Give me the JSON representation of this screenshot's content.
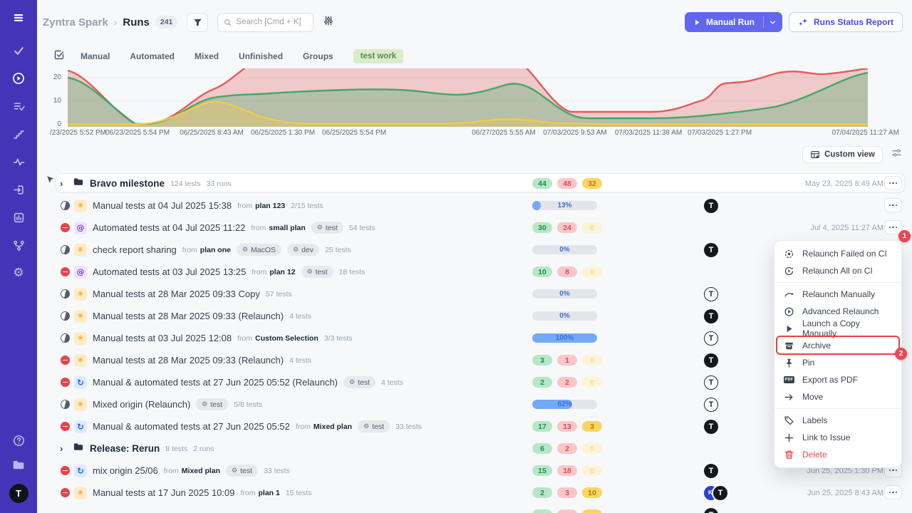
{
  "sidebar": {
    "icons": [
      "menu",
      "tests",
      "runs",
      "test-plans",
      "milestones",
      "analytics",
      "imports",
      "reports",
      "branches",
      "settings",
      "help",
      "projects"
    ],
    "avatar": "T",
    "accent_color": "#4435b8"
  },
  "header": {
    "breadcrumb": {
      "project": "Zyntra Spark",
      "separator": "›",
      "page": "Runs",
      "count": "241"
    },
    "search": {
      "placeholder": "Search [Cmd + K]"
    },
    "actions": {
      "manual_run": "Manual Run",
      "runs_status_report": "Runs Status Report"
    }
  },
  "filters": {
    "tabs": [
      "Manual",
      "Automated",
      "Mixed",
      "Unfinished",
      "Groups"
    ],
    "tag": "test work"
  },
  "chart_data": {
    "type": "area",
    "x": [
      "06/23/2025 5:52 PM",
      "06/23/2025 5:54 PM",
      "06/25/2025 8:43 AM",
      "06/25/2025 1:30 PM",
      "06/25/2025 5:54 PM",
      "06/27/2025 5:55 AM",
      "07/03/2025 9:53 AM",
      "07/03/2025 11:38 AM",
      "07/03/2025 1:27 PM",
      "07/04/2025 11:27 AM"
    ],
    "x_axis_display": [
      "/23/2025 5:52 PM",
      "06/23/2025 5:54 PM",
      "06/25/2025 8:43 AM",
      "06/25/2025 1:30 PM",
      "06/25/2025 5:54 PM",
      "06/27/2025 5:55 AM",
      "07/03/2025 9:53 AM",
      "07/03/2025 11:38 AM",
      "07/03/2025 1:27 PM",
      "07/04/2025 11:27 AM"
    ],
    "series": [
      {
        "name": "failed",
        "color": "#e25c5c",
        "values": [
          22,
          0,
          16,
          28,
          28,
          26,
          5,
          5,
          18,
          23
        ]
      },
      {
        "name": "passed",
        "color": "#41a968",
        "values": [
          20,
          0,
          12,
          13,
          15,
          17,
          3,
          3,
          4,
          22
        ]
      },
      {
        "name": "skipped",
        "color": "#f2c94c",
        "values": [
          0,
          0,
          10,
          1,
          0,
          2,
          0,
          0,
          0,
          1
        ]
      }
    ],
    "y_ticks": [
      0,
      10,
      20
    ],
    "y_tick_labels": [
      "20",
      "10",
      "0"
    ],
    "ylim": [
      0,
      25
    ],
    "grid": true,
    "legend": false
  },
  "toolbar": {
    "custom_view": "Custom view"
  },
  "table": {
    "labels": {
      "from": "from"
    },
    "avatar_labels": {
      "filled-t": "T",
      "outline-t": "T",
      "ki": "KI"
    },
    "rows": [
      {
        "kind": "group",
        "card": true,
        "cursor": true,
        "title": "Bravo milestone",
        "tests": "124 tests",
        "runs": "33 runs",
        "metric": {
          "type": "badges",
          "values": [
            "44",
            "48",
            "32"
          ]
        },
        "date": "May 23, 2025 8:49 AM",
        "more": true
      },
      {
        "kind": "run",
        "status": "in-progress",
        "origin": "manual",
        "title": "Manual tests at 04 Jul 2025 15:38",
        "plan": "plan 123",
        "tests": "2/15 tests",
        "metric": {
          "type": "progress",
          "percent": 13,
          "label": "13%"
        },
        "avatars": [
          "filled-t"
        ],
        "more": true
      },
      {
        "kind": "run",
        "status": "failed",
        "origin": "automated",
        "title": "Automated tests at 04 Jul 2025 11:22",
        "plan": "small plan",
        "tags": [
          "test"
        ],
        "tests": "54 tests",
        "metric": {
          "type": "badges",
          "values": [
            "30",
            "24",
            "0"
          ]
        },
        "date": "Jul 4, 2025 11:27 AM",
        "more": true
      },
      {
        "kind": "run",
        "status": "in-progress",
        "origin": "manual",
        "title": "check report sharing",
        "plan": "plan one",
        "tags": [
          "MacOS",
          "dev"
        ],
        "tests": "25 tests",
        "metric": {
          "type": "progress",
          "percent": 0,
          "label": "0%"
        },
        "avatars": [
          "filled-t"
        ],
        "more": false
      },
      {
        "kind": "run",
        "status": "failed",
        "origin": "automated",
        "title": "Automated tests at 03 Jul 2025 13:25",
        "plan": "plan 12",
        "tags": [
          "test"
        ],
        "tests": "18 tests",
        "metric": {
          "type": "badges",
          "values": [
            "10",
            "8",
            "0"
          ]
        },
        "more": false
      },
      {
        "kind": "run",
        "status": "in-progress",
        "origin": "manual",
        "title": "Manual tests at 28 Mar 2025 09:33 Copy",
        "tests": "57 tests",
        "metric": {
          "type": "progress",
          "percent": 0,
          "label": "0%"
        },
        "avatars": [
          "outline-t"
        ],
        "more": false
      },
      {
        "kind": "run",
        "status": "in-progress",
        "origin": "manual",
        "title": "Manual tests at 28 Mar 2025 09:33 (Relaunch)",
        "tests": "4 tests",
        "metric": {
          "type": "progress",
          "percent": 0,
          "label": "0%"
        },
        "avatars": [
          "filled-t"
        ],
        "more": false
      },
      {
        "kind": "run",
        "status": "in-progress",
        "origin": "manual",
        "title": "Manual tests at 03 Jul 2025 12:08",
        "plan": "Custom Selection",
        "tests": "3/3 tests",
        "metric": {
          "type": "progress",
          "percent": 100,
          "label": "100%"
        },
        "avatars": [
          "outline-t"
        ],
        "more": false
      },
      {
        "kind": "run",
        "status": "failed",
        "origin": "manual",
        "title": "Manual tests at 28 Mar 2025 09:33 (Relaunch)",
        "tests": "4 tests",
        "metric": {
          "type": "badges",
          "values": [
            "3",
            "1",
            "0"
          ]
        },
        "avatars": [
          "filled-t"
        ],
        "more": false
      },
      {
        "kind": "run",
        "status": "failed",
        "origin": "mixed",
        "title": "Manual & automated tests at 27 Jun 2025 05:52 (Relaunch)",
        "tags": [
          "test"
        ],
        "tests": "4 tests",
        "metric": {
          "type": "badges",
          "values": [
            "2",
            "2",
            "0"
          ]
        },
        "avatars": [
          "outline-t"
        ],
        "more": false
      },
      {
        "kind": "run",
        "status": "in-progress",
        "origin": "manual",
        "title": "Mixed origin (Relaunch)",
        "tags": [
          "test"
        ],
        "tests": "5/8 tests",
        "metric": {
          "type": "progress",
          "percent": 62,
          "label": "62%"
        },
        "avatars": [
          "outline-t"
        ],
        "more": false
      },
      {
        "kind": "run",
        "status": "failed",
        "origin": "mixed",
        "title": "Manual & automated tests at 27 Jun 2025 05:52",
        "plan": "Mixed plan",
        "tags": [
          "test"
        ],
        "tests": "33 tests",
        "metric": {
          "type": "badges",
          "values": [
            "17",
            "13",
            "3"
          ]
        },
        "avatars": [
          "filled-t"
        ],
        "more": false
      },
      {
        "kind": "group",
        "title": "Release: Rerun",
        "tests": "8 tests",
        "runs": "2 runs",
        "metric": {
          "type": "badges",
          "values": [
            "6",
            "2",
            "0"
          ]
        },
        "more": false
      },
      {
        "kind": "run",
        "status": "failed",
        "origin": "mixed",
        "title": "mix origin 25/06",
        "plan": "Mixed plan",
        "tags": [
          "test"
        ],
        "tests": "33 tests",
        "metric": {
          "type": "badges",
          "values": [
            "15",
            "18",
            "0"
          ]
        },
        "avatars": [
          "filled-t"
        ],
        "date": "Jun 25, 2025 1:30 PM",
        "more": true
      },
      {
        "kind": "run",
        "status": "failed",
        "origin": "manual",
        "title": "Manual tests at 17 Jun 2025 10:09",
        "plan": "plan 1",
        "tests": "15 tests",
        "metric": {
          "type": "badges",
          "values": [
            "2",
            "3",
            "10"
          ]
        },
        "avatars": [
          "ki",
          "filled-t"
        ],
        "date": "Jun 25, 2025 8:43 AM",
        "more": true
      },
      {
        "kind": "partial",
        "metric": {
          "type": "badges",
          "values": [
            "",
            "",
            ""
          ]
        },
        "avatars": [
          "filled-t"
        ]
      }
    ]
  },
  "menu": {
    "pdf_icon_label": "PDF",
    "items": [
      {
        "label": "Relaunch Failed on CI"
      },
      {
        "label": "Relaunch All on CI"
      },
      {
        "label": "Relaunch Manually"
      },
      {
        "label": "Advanced Relaunch"
      },
      {
        "label": "Launch a Copy Manually"
      },
      {
        "label": "Archive",
        "highlighted": true
      },
      {
        "label": "Pin"
      },
      {
        "label": "Export as PDF"
      },
      {
        "label": "Move"
      },
      {
        "label": "Labels"
      },
      {
        "label": "Link to Issue"
      },
      {
        "label": "Delete",
        "danger": true
      }
    ]
  },
  "annotations": {
    "step1": "1",
    "step2": "2"
  }
}
